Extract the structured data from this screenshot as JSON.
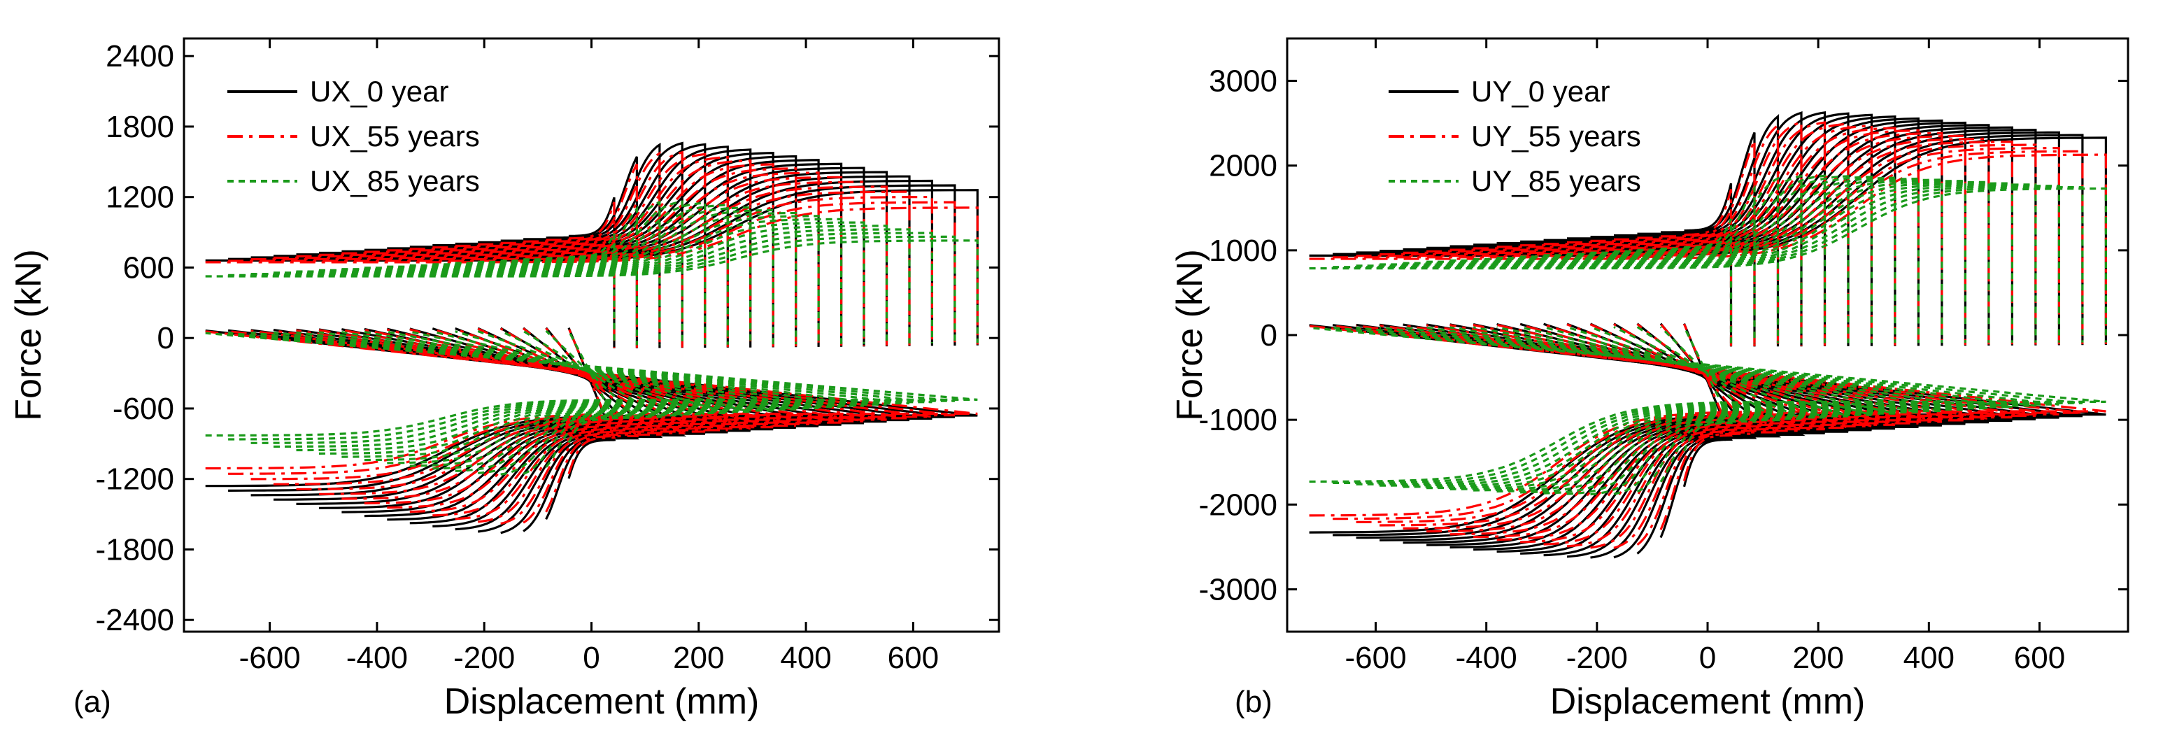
{
  "chart_data": [
    {
      "type": "line",
      "panel_label": "(a)",
      "xlabel": "Displacement (mm)",
      "ylabel": "Force (kN)",
      "xlim": [
        -760,
        760
      ],
      "ylim": [
        -2500,
        2550
      ],
      "xticks": [
        -600,
        -400,
        -200,
        0,
        200,
        400,
        600
      ],
      "yticks": [
        -2400,
        -1800,
        -1200,
        -600,
        0,
        600,
        1200,
        1800,
        2400
      ],
      "grid": false,
      "legend_position": "top-left",
      "model": {
        "d_max": 720,
        "cycles": 17,
        "d_y": 40,
        "yield_scale": 0.85
      },
      "series": [
        {
          "name": "UX_0 year",
          "color": "#000000",
          "dash": "solid",
          "F_peak": 1750,
          "F_end": 1260,
          "F_valley": 880
        },
        {
          "name": "UX_55 years",
          "color": "#ff0000",
          "dash": "dashdot",
          "F_peak": 1680,
          "F_end": 1110,
          "F_valley": 860
        },
        {
          "name": "UX_85 years",
          "color": "#1a9a1a",
          "dash": "dotted",
          "F_peak": 1230,
          "F_end": 830,
          "F_valley": 700
        }
      ]
    },
    {
      "type": "line",
      "panel_label": "(b)",
      "xlabel": "Displacement (mm)",
      "ylabel": "Force (kN)",
      "xlim": [
        -760,
        760
      ],
      "ylim": [
        -3500,
        3500
      ],
      "xticks": [
        -600,
        -400,
        -200,
        0,
        200,
        400,
        600
      ],
      "yticks": [
        -3000,
        -2000,
        -1000,
        0,
        1000,
        2000,
        3000
      ],
      "grid": false,
      "legend_position": "top-left",
      "model": {
        "d_max": 720,
        "cycles": 17,
        "d_y": 40,
        "yield_scale": 0.85
      },
      "series": [
        {
          "name": "UY_0 year",
          "color": "#000000",
          "dash": "solid",
          "F_peak": 2720,
          "F_end": 2330,
          "F_valley": 1250
        },
        {
          "name": "UY_55 years",
          "color": "#ff0000",
          "dash": "dashdot",
          "F_peak": 2620,
          "F_end": 2130,
          "F_valley": 1200
        },
        {
          "name": "UY_85 years",
          "color": "#1a9a1a",
          "dash": "dotted",
          "F_peak": 1930,
          "F_end": 1730,
          "F_valley": 1050
        }
      ]
    }
  ]
}
